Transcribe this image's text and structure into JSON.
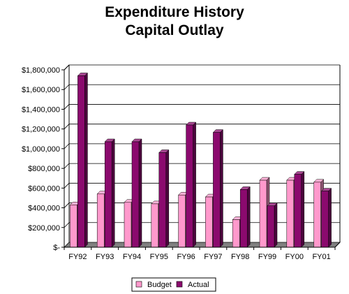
{
  "chart_data": {
    "type": "bar",
    "title": [
      "Expenditure History",
      "Capital Outlay"
    ],
    "xlabel": "",
    "ylabel": "",
    "categories": [
      "FY92",
      "FY93",
      "FY94",
      "FY95",
      "FY96",
      "FY97",
      "FY98",
      "FY99",
      "FY00",
      "FY01"
    ],
    "series": [
      {
        "name": "Budget",
        "color": "#ff99cc",
        "values": [
          430000,
          540000,
          455000,
          440000,
          530000,
          510000,
          280000,
          680000,
          680000,
          660000
        ]
      },
      {
        "name": "Actual",
        "color": "#8b0a6e",
        "values": [
          1740000,
          1070000,
          1070000,
          960000,
          1240000,
          1165000,
          585000,
          420000,
          740000,
          570000
        ]
      }
    ],
    "ylim": [
      0,
      1800000
    ],
    "yticks": [
      0,
      200000,
      400000,
      600000,
      800000,
      1000000,
      1200000,
      1400000,
      1600000,
      1800000
    ],
    "ytick_labels": [
      "$-",
      "$200,000",
      "$400,000",
      "$600,000",
      "$800,000",
      "$1,000,000",
      "$1,200,000",
      "$1,400,000",
      "$1,600,000",
      "$1,800,000"
    ],
    "grid": true,
    "legend_position": "bottom"
  }
}
